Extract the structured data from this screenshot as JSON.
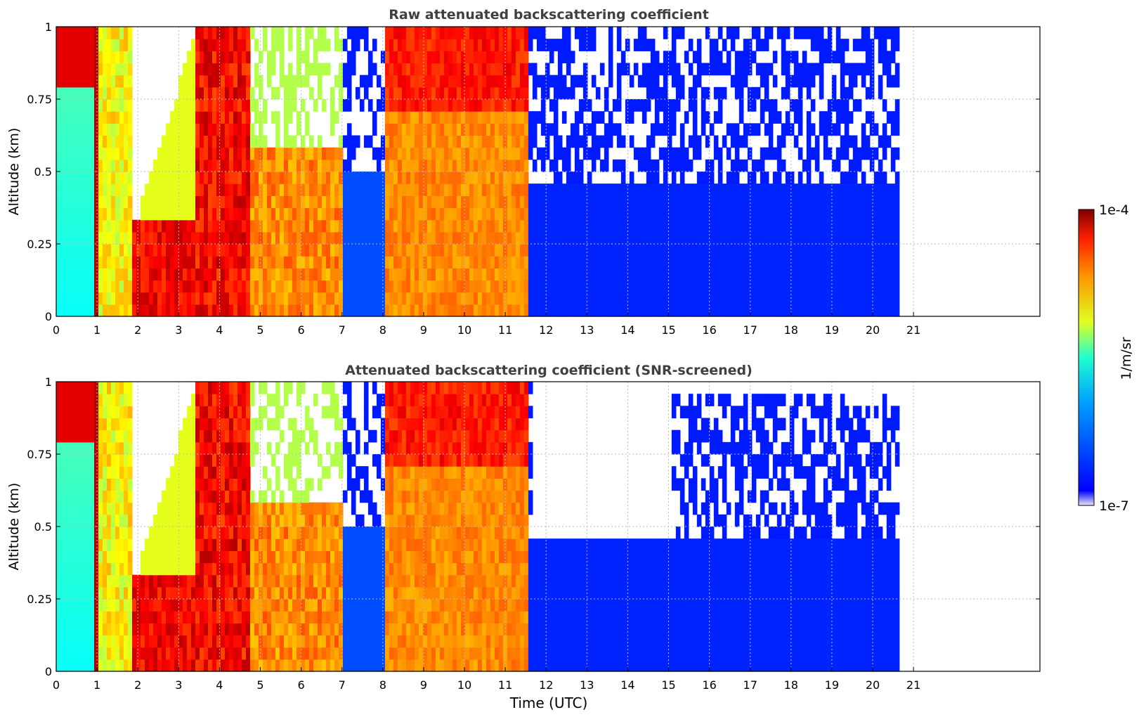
{
  "figure": {
    "xlabel": "Time (UTC)"
  },
  "chart_data": [
    {
      "type": "heatmap",
      "title": "Raw attenuated backscattering coefficient",
      "xlabel": "",
      "ylabel": "Altitude (km)",
      "xlim": [
        0,
        24
      ],
      "ylim": [
        0,
        1
      ],
      "xticks": [
        "0",
        "1",
        "2",
        "3",
        "4",
        "5",
        "6",
        "7",
        "8",
        "9",
        "10",
        "11",
        "12",
        "13",
        "14",
        "15",
        "16",
        "17",
        "18",
        "19",
        "20",
        "21"
      ],
      "yticks": [
        "0",
        "0.25",
        "0.5",
        "0.75",
        "1"
      ],
      "grid": true,
      "data_end_hour": 20.65,
      "time_blocks": [
        {
          "start": 0.0,
          "end": 0.95,
          "level": "low-mid",
          "top_value": "high"
        },
        {
          "start": 0.95,
          "end": 1.05,
          "level": "very-high"
        },
        {
          "start": 1.05,
          "end": 1.9,
          "level": "mid-high"
        },
        {
          "start": 1.9,
          "end": 3.4,
          "level": "high",
          "cloud_top_km": 0.3
        },
        {
          "start": 3.4,
          "end": 4.8,
          "level": "very-high"
        },
        {
          "start": 4.8,
          "end": 7.0,
          "level": "high"
        },
        {
          "start": 7.0,
          "end": 8.05,
          "level": "low"
        },
        {
          "start": 8.05,
          "end": 11.6,
          "level": "high"
        },
        {
          "start": 11.6,
          "end": 20.65,
          "level": "low"
        }
      ]
    },
    {
      "type": "heatmap",
      "title": "Attenuated backscattering coefficient (SNR-screened)",
      "xlabel": "Time (UTC)",
      "ylabel": "Altitude (km)",
      "xlim": [
        0,
        24
      ],
      "ylim": [
        0,
        1
      ],
      "xticks": [
        "0",
        "1",
        "2",
        "3",
        "4",
        "5",
        "6",
        "7",
        "8",
        "9",
        "10",
        "11",
        "12",
        "13",
        "14",
        "15",
        "16",
        "17",
        "18",
        "19",
        "20",
        "21"
      ],
      "yticks": [
        "0",
        "0.25",
        "0.5",
        "0.75",
        "1"
      ],
      "grid": true,
      "data_end_hour": 20.65,
      "screened_top_km": [
        {
          "start": 11.6,
          "end": 15.0,
          "top_km": 0.45
        },
        {
          "start": 15.0,
          "end": 20.65,
          "top_km": 0.95
        }
      ]
    }
  ],
  "colorbar": {
    "label": "1/m/sr",
    "max_label": "1e-4",
    "min_label": "1e-7",
    "scale": "log",
    "range": [
      1e-07,
      0.0001
    ],
    "colormap": "jet"
  }
}
